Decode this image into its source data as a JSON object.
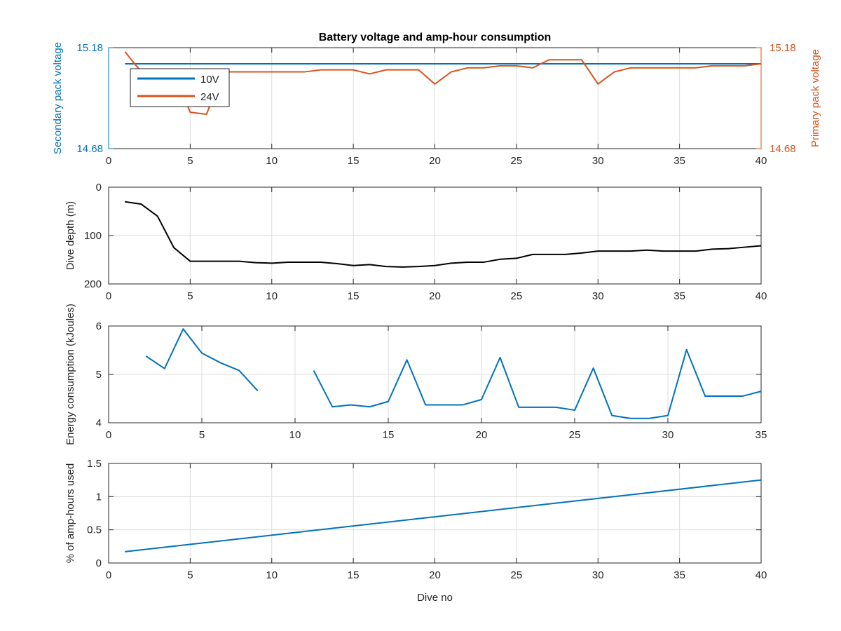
{
  "figure": {
    "title": "Battery voltage and amp-hour consumption",
    "xlabel": "Dive no"
  },
  "colors": {
    "blue": "#0072bd",
    "orange": "#d95319",
    "black": "#000000",
    "grid": "#dcdcdc",
    "axis": "#262626"
  },
  "chart_data": [
    {
      "type": "line",
      "id": "voltage",
      "title": "Battery voltage and amp-hour consumption",
      "xlim": [
        0,
        40
      ],
      "xticks": [
        0,
        5,
        10,
        15,
        20,
        25,
        30,
        35,
        40
      ],
      "ylabel_left": "Secondary pack voltage",
      "ylabel_right": "Primary pack voltage",
      "ylim_left": [
        14.68,
        15.18
      ],
      "ylim_right": [
        14.68,
        15.18
      ],
      "yticks_left": [
        "15.18",
        "14.68"
      ],
      "yticks_right": [
        "15.18",
        "14.68"
      ],
      "grid": true,
      "legend": {
        "placement": "top-left",
        "entries": [
          "10V",
          "24V"
        ]
      },
      "series": [
        {
          "name": "10V",
          "axis": "left",
          "color": "#0072bd",
          "x": [
            1,
            40
          ],
          "y": [
            15.1,
            15.1
          ]
        },
        {
          "name": "24V",
          "axis": "right",
          "color": "#d95319",
          "x": [
            1,
            2,
            3,
            4,
            5,
            6,
            7,
            8,
            9,
            10,
            11,
            12,
            13,
            14,
            15,
            16,
            17,
            18,
            19,
            20,
            21,
            22,
            23,
            24,
            25,
            26,
            27,
            28,
            29,
            30,
            31,
            32,
            33,
            34,
            35,
            36,
            37,
            38,
            39,
            40
          ],
          "y": [
            15.16,
            15.06,
            15.06,
            15.06,
            14.86,
            14.85,
            15.06,
            15.06,
            15.06,
            15.06,
            15.06,
            15.06,
            15.07,
            15.07,
            15.07,
            15.05,
            15.07,
            15.07,
            15.07,
            15.0,
            15.06,
            15.08,
            15.08,
            15.09,
            15.09,
            15.08,
            15.12,
            15.12,
            15.12,
            15.0,
            15.06,
            15.08,
            15.08,
            15.08,
            15.08,
            15.08,
            15.09,
            15.09,
            15.09,
            15.1
          ]
        }
      ]
    },
    {
      "type": "line",
      "id": "depth",
      "xlim": [
        0,
        40
      ],
      "xticks": [
        0,
        5,
        10,
        15,
        20,
        25,
        30,
        35,
        40
      ],
      "ylabel": "Dive depth (m)",
      "ylim": [
        0,
        200
      ],
      "yreversed": true,
      "yticks": [
        0,
        100,
        200
      ],
      "grid": true,
      "series": [
        {
          "color": "#000000",
          "x": [
            1,
            2,
            3,
            4,
            5,
            6,
            7,
            8,
            9,
            10,
            11,
            12,
            13,
            14,
            15,
            16,
            17,
            18,
            19,
            20,
            21,
            22,
            23,
            24,
            25,
            26,
            27,
            28,
            29,
            30,
            31,
            32,
            33,
            34,
            35,
            36,
            37,
            38,
            39,
            40
          ],
          "y": [
            30,
            35,
            60,
            125,
            153,
            153,
            153,
            153,
            156,
            157,
            155,
            155,
            155,
            158,
            162,
            160,
            164,
            165,
            164,
            162,
            157,
            155,
            155,
            149,
            147,
            139,
            139,
            139,
            136,
            132,
            132,
            132,
            130,
            132,
            132,
            132,
            128,
            127,
            124,
            121
          ]
        }
      ]
    },
    {
      "type": "line",
      "id": "energy",
      "xlim": [
        0,
        35
      ],
      "xticks": [
        0,
        5,
        10,
        15,
        20,
        25,
        30,
        35
      ],
      "ylabel": "Energy consumption (kJoules)",
      "ylim": [
        4,
        6
      ],
      "yticks": [
        4,
        5,
        6
      ],
      "grid": true,
      "series": [
        {
          "color": "#0072bd",
          "x": [
            2,
            3,
            4,
            5,
            6,
            7,
            8,
            null,
            11,
            12,
            13,
            14,
            15,
            16,
            17,
            18,
            19,
            20,
            21,
            22,
            23,
            24,
            25,
            26,
            27,
            28,
            29,
            30,
            31,
            32,
            33,
            34,
            35
          ],
          "y": [
            5.38,
            5.12,
            5.94,
            5.44,
            5.24,
            5.08,
            4.66,
            null,
            5.08,
            4.33,
            4.37,
            4.33,
            4.44,
            5.3,
            4.37,
            4.37,
            4.37,
            4.48,
            5.35,
            4.32,
            4.32,
            4.32,
            4.26,
            5.13,
            4.15,
            4.09,
            4.09,
            4.15,
            5.51,
            4.55,
            4.55,
            4.55,
            4.65
          ]
        }
      ]
    },
    {
      "type": "line",
      "id": "amphours",
      "xlim": [
        0,
        40
      ],
      "xticks": [
        0,
        5,
        10,
        15,
        20,
        25,
        30,
        35,
        40
      ],
      "xlabel": "Dive no",
      "ylabel": "% of amp-hours used",
      "ylim": [
        0,
        1.5
      ],
      "yticks": [
        0,
        0.5,
        1,
        1.5
      ],
      "grid": true,
      "series": [
        {
          "color": "#0072bd",
          "x": [
            1,
            40
          ],
          "y": [
            0.17,
            1.25
          ]
        }
      ]
    }
  ]
}
